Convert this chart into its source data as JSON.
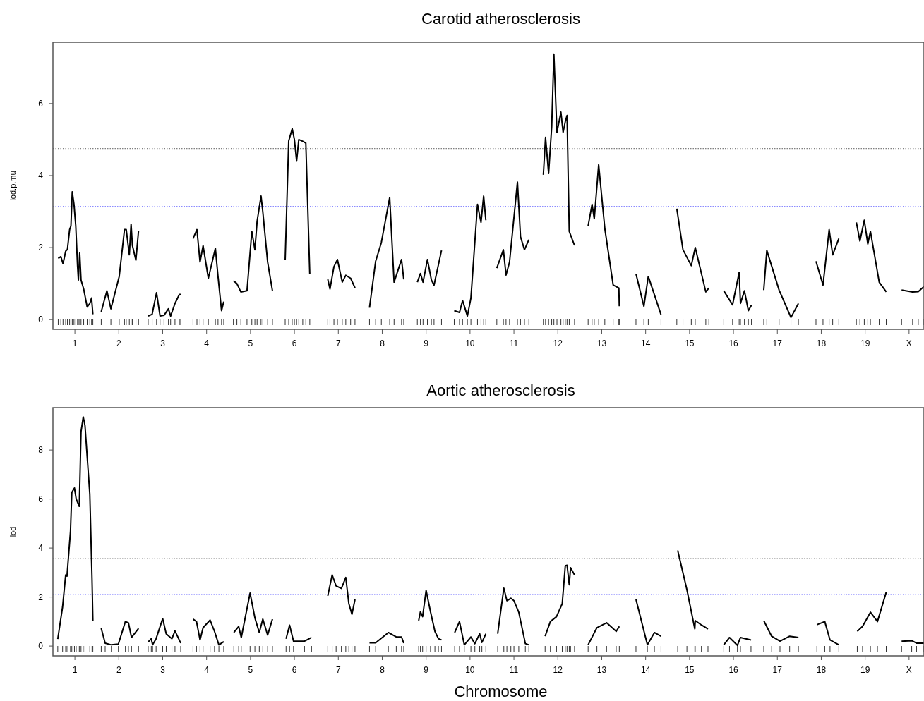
{
  "chart_data": [
    {
      "type": "line",
      "title": "Carotid atherosclerosis",
      "ylabel": "lod.p.mu",
      "xlim": [
        0.5,
        20.34
      ],
      "ylim": [
        -0.27,
        7.7
      ],
      "yticks": [
        0,
        2,
        4,
        6
      ],
      "xticks": [
        1,
        2,
        3,
        4,
        5,
        6,
        7,
        8,
        9,
        10,
        11,
        12,
        13,
        14,
        15,
        16,
        17,
        18,
        19,
        {
          "value": 20,
          "label": "X"
        }
      ],
      "grid": false,
      "line_style": "solid",
      "ref_lines": [
        {
          "axis": "y",
          "value": 4.75,
          "color": "#808080",
          "line_style": "dotted"
        },
        {
          "axis": "y",
          "value": 3.14,
          "color": "#6666ff",
          "line_style": "dotted"
        }
      ],
      "series": [
        {
          "color": "#000000",
          "x": [
            0.62,
            0.68,
            0.73,
            0.79,
            0.83,
            0.88,
            0.91,
            0.94,
            0.98,
            1.02,
            1.06,
            1.08,
            1.11,
            1.14,
            1.2,
            1.28,
            1.34,
            1.38,
            1.41
          ],
          "values": [
            1.7,
            1.75,
            1.55,
            1.9,
            1.95,
            2.5,
            2.6,
            3.55,
            3.2,
            2.6,
            1.5,
            1.1,
            1.85,
            1.1,
            0.85,
            0.35,
            0.45,
            0.6,
            0.15
          ]
        },
        {
          "color": "#000000",
          "x": [
            1.6,
            1.73,
            1.82,
            2.01,
            2.13,
            2.17,
            2.24,
            2.28,
            2.31,
            2.39,
            2.45
          ],
          "values": [
            0.22,
            0.8,
            0.3,
            1.2,
            2.5,
            2.5,
            1.8,
            2.65,
            2.06,
            1.65,
            2.47
          ]
        },
        {
          "color": "#000000",
          "x": [
            2.67,
            2.76,
            2.86,
            2.94,
            3.03,
            3.13,
            3.18,
            3.28,
            3.38,
            3.41
          ],
          "values": [
            0.1,
            0.15,
            0.75,
            0.1,
            0.12,
            0.3,
            0.1,
            0.45,
            0.7,
            0.7
          ]
        },
        {
          "color": "#000000",
          "x": [
            3.69,
            3.78,
            3.85,
            3.92,
            4.04,
            4.2,
            4.26,
            4.34,
            4.39
          ],
          "values": [
            2.25,
            2.5,
            1.6,
            2.05,
            1.15,
            1.98,
            1.2,
            0.25,
            0.5
          ]
        },
        {
          "color": "#000000",
          "x": [
            4.61,
            4.69,
            4.78,
            4.92,
            5.03,
            5.1,
            5.15,
            5.24,
            5.28,
            5.39,
            5.5
          ],
          "values": [
            1.08,
            1.0,
            0.77,
            0.8,
            2.45,
            1.94,
            2.73,
            3.43,
            3.0,
            1.6,
            0.8
          ]
        },
        {
          "color": "#000000",
          "x": [
            5.79,
            5.87,
            5.95,
            6,
            6.05,
            6.1,
            6.19,
            6.26,
            6.35
          ],
          "values": [
            1.67,
            4.96,
            5.3,
            5.0,
            4.4,
            5.0,
            4.95,
            4.9,
            1.27
          ]
        },
        {
          "color": "#000000",
          "x": [
            6.76,
            6.81,
            6.9,
            6.98,
            7.09,
            7.17,
            7.28,
            7.38
          ],
          "values": [
            1.12,
            0.85,
            1.47,
            1.67,
            1.04,
            1.23,
            1.15,
            0.88
          ]
        },
        {
          "color": "#000000",
          "x": [
            7.71,
            7.85,
            7.98,
            8.17,
            8.27,
            8.44,
            8.49
          ],
          "values": [
            0.33,
            1.62,
            2.14,
            3.39,
            1.04,
            1.67,
            1.12
          ]
        },
        {
          "color": "#000000",
          "x": [
            8.8,
            8.87,
            8.93,
            9.03,
            9.12,
            9.18,
            9.35
          ],
          "values": [
            1.04,
            1.28,
            1.04,
            1.67,
            1.1,
            0.96,
            1.92
          ]
        },
        {
          "color": "#000000",
          "x": [
            9.64,
            9.76,
            9.83,
            9.94,
            10.02,
            10.17,
            10.25,
            10.31,
            10.36
          ],
          "values": [
            0.25,
            0.2,
            0.53,
            0.1,
            0.6,
            3.2,
            2.7,
            3.43,
            2.76
          ]
        },
        {
          "color": "#000000",
          "x": [
            10.61,
            10.76,
            10.82,
            10.9,
            11.08,
            11.15,
            11.24,
            11.34
          ],
          "values": [
            1.43,
            1.94,
            1.24,
            1.6,
            3.82,
            2.3,
            1.94,
            2.22
          ]
        },
        {
          "color": "#000000",
          "x": [
            11.67,
            11.72,
            11.79,
            11.86,
            11.91,
            11.98,
            12.07,
            12.12,
            12.17,
            12.21,
            12.26,
            12.38
          ],
          "values": [
            4.02,
            5.06,
            4.06,
            5.35,
            7.37,
            5.2,
            5.76,
            5.2,
            5.5,
            5.67,
            2.45,
            2.06
          ]
        },
        {
          "color": "#000000",
          "x": [
            12.69,
            12.78,
            12.83,
            12.93,
            13.07,
            13.26,
            13.39,
            13.4
          ],
          "values": [
            2.6,
            3.2,
            2.8,
            4.3,
            2.53,
            0.96,
            0.88,
            0.37
          ]
        },
        {
          "color": "#000000",
          "x": [
            13.78,
            13.96,
            14.06,
            14.35
          ],
          "values": [
            1.27,
            0.37,
            1.2,
            0.14
          ]
        },
        {
          "color": "#000000",
          "x": [
            14.71,
            14.85,
            15.04,
            15.13,
            15.37,
            15.44
          ],
          "values": [
            3.08,
            1.94,
            1.5,
            2.0,
            0.77,
            0.88
          ]
        },
        {
          "color": "#000000",
          "x": [
            15.78,
            15.98,
            16.13,
            16.16,
            16.25,
            16.34,
            16.41
          ],
          "values": [
            0.8,
            0.41,
            1.31,
            0.45,
            0.8,
            0.25,
            0.4
          ]
        },
        {
          "color": "#000000",
          "x": [
            16.69,
            16.76,
            17.04,
            17.31,
            17.48
          ],
          "values": [
            0.82,
            1.92,
            0.82,
            0.06,
            0.45
          ]
        },
        {
          "color": "#000000",
          "x": [
            17.88,
            18.04,
            18.18,
            18.26,
            18.4
          ],
          "values": [
            1.62,
            0.96,
            2.5,
            1.8,
            2.25
          ]
        },
        {
          "color": "#000000",
          "x": [
            18.8,
            18.88,
            18.98,
            19.06,
            19.12,
            19.32,
            19.48
          ],
          "values": [
            2.7,
            2.18,
            2.76,
            2.1,
            2.45,
            1.04,
            0.77
          ]
        },
        {
          "color": "#000000",
          "x": [
            19.83,
            20.08,
            20.21,
            20.34
          ],
          "values": [
            0.82,
            0.77,
            0.78,
            0.92
          ]
        }
      ]
    },
    {
      "type": "line",
      "title": "Aortic atherosclerosis",
      "xlabel": "Chromosome",
      "ylabel": "lod",
      "xlim": [
        0.5,
        20.34
      ],
      "ylim": [
        -0.4,
        9.73
      ],
      "yticks": [
        0,
        2,
        4,
        6,
        8
      ],
      "xticks": [
        1,
        2,
        3,
        4,
        5,
        6,
        7,
        8,
        9,
        10,
        11,
        12,
        13,
        14,
        15,
        16,
        17,
        18,
        19,
        {
          "value": 20,
          "label": "X"
        }
      ],
      "grid": false,
      "line_style": "solid",
      "ref_lines": [
        {
          "axis": "y",
          "value": 3.57,
          "color": "#808080",
          "line_style": "dotted"
        },
        {
          "axis": "y",
          "value": 2.1,
          "color": "#6666ff",
          "line_style": "dotted"
        }
      ],
      "series": [
        {
          "color": "#000000",
          "x": [
            0.61,
            0.72,
            0.79,
            0.82,
            0.9,
            0.93,
            0.99,
            1.03,
            1.1,
            1.14,
            1.19,
            1.23,
            1.34,
            1.39,
            1.41
          ],
          "values": [
            0.29,
            1.6,
            2.9,
            2.85,
            4.7,
            6.27,
            6.45,
            6.0,
            5.7,
            8.75,
            9.35,
            9.0,
            6.2,
            2.76,
            1.04
          ]
        },
        {
          "color": "#000000",
          "x": [
            1.6,
            1.69,
            1.83,
            1.99,
            2.15,
            2.22,
            2.29,
            2.45
          ],
          "values": [
            0.72,
            0.12,
            0.05,
            0.08,
            1.0,
            0.95,
            0.35,
            0.72
          ]
        },
        {
          "color": "#000000",
          "x": [
            2.67,
            2.74,
            2.77,
            2.85,
            3,
            3.08,
            3.21,
            3.28,
            3.41
          ],
          "values": [
            0.17,
            0.3,
            0.05,
            0.3,
            1.12,
            0.5,
            0.3,
            0.62,
            0.12
          ]
        },
        {
          "color": "#000000",
          "x": [
            3.69,
            3.77,
            3.85,
            3.92,
            4.08,
            4.18,
            4.28,
            4.39
          ],
          "values": [
            1.1,
            1.0,
            0.25,
            0.75,
            1.06,
            0.6,
            0.05,
            0.18
          ]
        },
        {
          "color": "#000000",
          "x": [
            4.62,
            4.73,
            4.79,
            4.99,
            5.1,
            5.2,
            5.28,
            5.39,
            5.5
          ],
          "values": [
            0.55,
            0.8,
            0.35,
            2.16,
            1.15,
            0.55,
            1.1,
            0.45,
            1.1
          ]
        },
        {
          "color": "#000000",
          "x": [
            5.81,
            5.89,
            5.98,
            6.23,
            6.39
          ],
          "values": [
            0.3,
            0.85,
            0.2,
            0.2,
            0.35
          ]
        },
        {
          "color": "#000000",
          "x": [
            6.76,
            6.86,
            6.95,
            7.07,
            7.17,
            7.24,
            7.31,
            7.38
          ],
          "values": [
            2.05,
            2.9,
            2.45,
            2.35,
            2.8,
            1.73,
            1.3,
            1.9
          ]
        },
        {
          "color": "#000000",
          "x": [
            7.71,
            7.85,
            8.14,
            8.32,
            8.44,
            8.49
          ],
          "values": [
            0.13,
            0.13,
            0.55,
            0.37,
            0.37,
            0.12
          ]
        },
        {
          "color": "#000000",
          "x": [
            8.83,
            8.87,
            8.92,
            9,
            9.1,
            9.2,
            9.28,
            9.35
          ],
          "values": [
            1.04,
            1.4,
            1.2,
            2.27,
            1.4,
            0.6,
            0.3,
            0.25
          ]
        },
        {
          "color": "#000000",
          "x": [
            9.65,
            9.76,
            9.87,
            10.02,
            10.11,
            10.22,
            10.27,
            10.36
          ],
          "values": [
            0.55,
            1.0,
            0.05,
            0.37,
            0.1,
            0.5,
            0.15,
            0.5
          ]
        },
        {
          "color": "#000000",
          "x": [
            10.63,
            10.77,
            10.84,
            10.93,
            11,
            11.11,
            11.26,
            11.34
          ],
          "values": [
            0.5,
            2.36,
            1.85,
            1.95,
            1.85,
            1.38,
            0.1,
            0.05
          ]
        },
        {
          "color": "#000000",
          "x": [
            11.71,
            11.83,
            11.97,
            12.1,
            12.17,
            12.21,
            12.26,
            12.29,
            12.38
          ],
          "values": [
            0.4,
            1.0,
            1.2,
            1.73,
            3.28,
            3.3,
            2.5,
            3.2,
            2.9
          ]
        },
        {
          "color": "#000000",
          "x": [
            12.69,
            12.89,
            13.11,
            13.33,
            13.4
          ],
          "values": [
            0.05,
            0.75,
            0.95,
            0.6,
            0.8
          ]
        },
        {
          "color": "#000000",
          "x": [
            13.78,
            14.04,
            14.2,
            14.35
          ],
          "values": [
            1.9,
            0.05,
            0.55,
            0.4
          ]
        },
        {
          "color": "#000000",
          "x": [
            14.73,
            14.94,
            15.12,
            15.13,
            15.27,
            15.42
          ],
          "values": [
            3.9,
            2.3,
            0.7,
            1.04,
            0.86,
            0.7
          ]
        },
        {
          "color": "#000000",
          "x": [
            15.78,
            15.91,
            16.09,
            16.16,
            16.4
          ],
          "values": [
            0.05,
            0.35,
            0.03,
            0.35,
            0.25
          ]
        },
        {
          "color": "#000000",
          "x": [
            16.69,
            16.87,
            17.06,
            17.28,
            17.48
          ],
          "values": [
            1.04,
            0.4,
            0.2,
            0.4,
            0.35
          ]
        },
        {
          "color": "#000000",
          "x": [
            17.9,
            18.08,
            18.2,
            18.4
          ],
          "values": [
            0.87,
            1.0,
            0.25,
            0.05
          ]
        },
        {
          "color": "#000000",
          "x": [
            18.82,
            18.94,
            19.12,
            19.28,
            19.48
          ],
          "values": [
            0.6,
            0.8,
            1.38,
            1.0,
            2.2
          ]
        },
        {
          "color": "#000000",
          "x": [
            19.83,
            20.06,
            20.17,
            20.34
          ],
          "values": [
            0.2,
            0.22,
            0.12,
            0.12
          ]
        }
      ]
    }
  ]
}
